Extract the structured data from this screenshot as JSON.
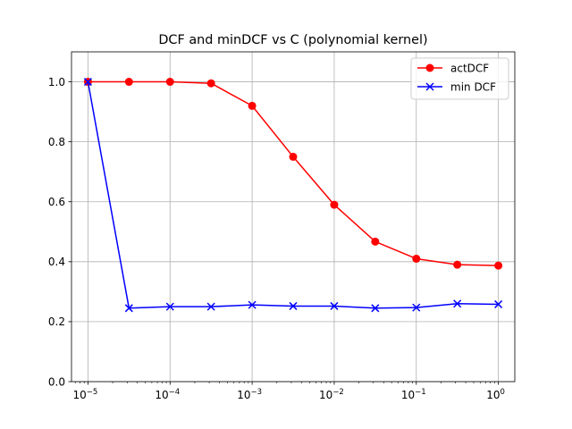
{
  "chart_data": {
    "type": "line",
    "title": "DCF and minDCF vs C (polynomial kernel)",
    "xscale": "log",
    "x": [
      1e-05,
      3.16e-05,
      0.0001,
      0.000316,
      0.001,
      0.00316,
      0.01,
      0.0316,
      0.1,
      0.316,
      1
    ],
    "xticks": [
      {
        "value": 1e-05,
        "label": "10",
        "exp": "−5"
      },
      {
        "value": 0.0001,
        "label": "10",
        "exp": "−4"
      },
      {
        "value": 0.001,
        "label": "10",
        "exp": "−3"
      },
      {
        "value": 0.01,
        "label": "10",
        "exp": "−2"
      },
      {
        "value": 0.1,
        "label": "10",
        "exp": "−1"
      },
      {
        "value": 1,
        "label": "10",
        "exp": "0"
      }
    ],
    "yticks": [
      {
        "value": 0.0,
        "label": "0.0"
      },
      {
        "value": 0.2,
        "label": "0.2"
      },
      {
        "value": 0.4,
        "label": "0.4"
      },
      {
        "value": 0.6,
        "label": "0.6"
      },
      {
        "value": 0.8,
        "label": "0.8"
      },
      {
        "value": 1.0,
        "label": "1.0"
      }
    ],
    "xlim": [
      6.3e-06,
      1.585
    ],
    "ylim": [
      0,
      1.1
    ],
    "grid": true,
    "legend_position": "top-right",
    "series": [
      {
        "name": "actDCF",
        "color": "#ff0000",
        "marker": "circle",
        "values": [
          1.0,
          1.0,
          1.0,
          0.995,
          0.92,
          0.75,
          0.59,
          0.467,
          0.41,
          0.39,
          0.387
        ]
      },
      {
        "name": "min DCF",
        "color": "#0000ff",
        "marker": "x",
        "values": [
          1.0,
          0.245,
          0.25,
          0.25,
          0.256,
          0.252,
          0.252,
          0.245,
          0.247,
          0.26,
          0.258
        ]
      }
    ]
  }
}
